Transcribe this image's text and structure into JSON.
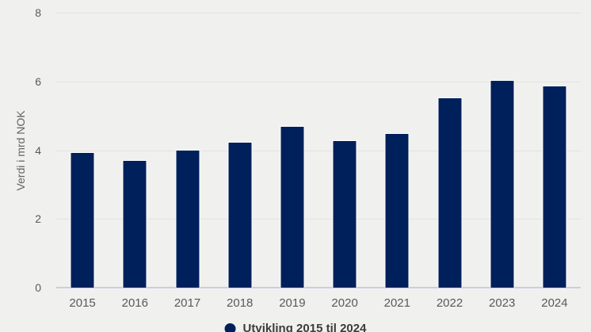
{
  "chart_data": {
    "type": "bar",
    "title": "",
    "xlabel": "",
    "ylabel": "Verdi i mrd NOK",
    "categories": [
      "2015",
      "2016",
      "2017",
      "2018",
      "2019",
      "2020",
      "2021",
      "2022",
      "2023",
      "2024"
    ],
    "values": [
      3.95,
      3.72,
      4.02,
      4.24,
      4.71,
      4.3,
      4.5,
      5.53,
      6.03,
      5.87
    ],
    "ylim": [
      0,
      8
    ],
    "yticks": [
      0,
      2,
      4,
      6,
      8
    ],
    "grid": true,
    "legend": {
      "position": "bottom-center",
      "label": "Utvikling 2015 til 2024"
    },
    "colors": {
      "bar": "#00205c",
      "bar_border": "#ffffff",
      "background": "#f0f0ee",
      "gridline": "#e2e2df",
      "axis_line": "#c9cee4",
      "tick_label": "#595959",
      "axis_title": "#666463",
      "legend_text": "#3c3c3b"
    }
  }
}
